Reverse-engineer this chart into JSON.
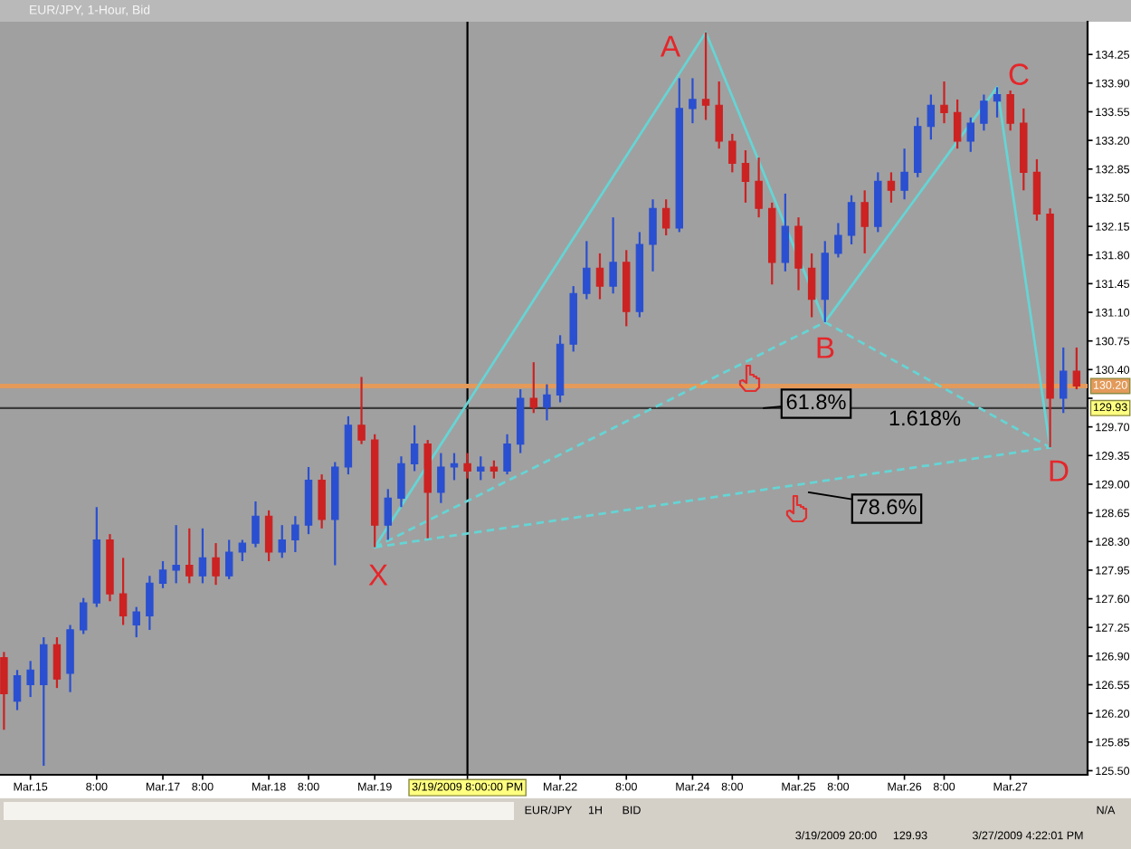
{
  "chart_data": {
    "type": "candlestick",
    "title": "EUR/JPY, 1-Hour, Bid",
    "categories": [
      null,
      null,
      "Mar.15",
      null,
      null,
      null,
      null,
      "8:00",
      null,
      null,
      null,
      null,
      "Mar.17",
      null,
      null,
      "8:00",
      null,
      null,
      null,
      null,
      "Mar.18",
      null,
      null,
      "8:00",
      null,
      null,
      null,
      null,
      "Mar.19",
      null,
      null,
      null,
      null,
      null,
      null,
      "3/19/2009 8:00:00 PM",
      null,
      null,
      null,
      null,
      null,
      null,
      "Mar.22",
      null,
      null,
      null,
      null,
      "8:00",
      null,
      null,
      null,
      null,
      "Mar.24",
      null,
      null,
      "8:00",
      null,
      null,
      null,
      null,
      "Mar.25",
      null,
      null,
      "8:00",
      null,
      null,
      null,
      null,
      "Mar.26",
      null,
      null,
      "8:00",
      null,
      null,
      null,
      null,
      "Mar.27",
      null,
      null,
      null,
      null,
      null
    ],
    "ohlc": [
      [
        126.88,
        126.95,
        126.0,
        126.44
      ],
      [
        126.35,
        126.73,
        126.24,
        126.66
      ],
      [
        126.55,
        126.84,
        126.4,
        126.73
      ],
      [
        126.55,
        127.13,
        125.56,
        127.04
      ],
      [
        127.04,
        127.13,
        126.51,
        126.62
      ],
      [
        126.69,
        127.28,
        126.46,
        127.22
      ],
      [
        127.22,
        127.61,
        127.17,
        127.55
      ],
      [
        127.55,
        128.72,
        127.5,
        128.32
      ],
      [
        128.32,
        128.39,
        127.57,
        127.66
      ],
      [
        127.66,
        128.1,
        127.28,
        127.39
      ],
      [
        127.28,
        127.5,
        127.13,
        127.44
      ],
      [
        127.39,
        127.88,
        127.22,
        127.79
      ],
      [
        127.79,
        128.06,
        127.73,
        127.95
      ],
      [
        127.95,
        128.5,
        127.79,
        128.01
      ],
      [
        128.01,
        128.46,
        127.79,
        127.88
      ],
      [
        127.88,
        128.46,
        127.79,
        128.1
      ],
      [
        128.1,
        128.28,
        127.77,
        127.88
      ],
      [
        127.88,
        128.32,
        127.84,
        128.17
      ],
      [
        128.17,
        128.32,
        128.06,
        128.28
      ],
      [
        128.28,
        128.79,
        128.23,
        128.61
      ],
      [
        128.61,
        128.68,
        128.06,
        128.17
      ],
      [
        128.17,
        128.5,
        128.1,
        128.32
      ],
      [
        128.32,
        128.61,
        128.17,
        128.5
      ],
      [
        128.5,
        129.21,
        128.39,
        129.05
      ],
      [
        129.05,
        129.12,
        128.46,
        128.57
      ],
      [
        128.57,
        129.27,
        128.01,
        129.21
      ],
      [
        129.21,
        129.83,
        129.12,
        129.72
      ],
      [
        129.72,
        130.31,
        129.49,
        129.54
      ],
      [
        129.54,
        129.61,
        128.23,
        128.5
      ],
      [
        128.5,
        128.94,
        128.32,
        128.83
      ],
      [
        128.83,
        129.34,
        128.72,
        129.25
      ],
      [
        129.25,
        129.72,
        129.16,
        129.49
      ],
      [
        129.49,
        129.54,
        128.34,
        128.9
      ],
      [
        128.9,
        129.38,
        128.77,
        129.21
      ],
      [
        129.21,
        129.38,
        129.05,
        129.25
      ],
      [
        129.25,
        129.38,
        129.07,
        129.16
      ],
      [
        129.16,
        129.34,
        129.05,
        129.21
      ],
      [
        129.21,
        129.29,
        129.07,
        129.16
      ],
      [
        129.16,
        129.61,
        129.12,
        129.49
      ],
      [
        129.49,
        130.16,
        129.38,
        130.05
      ],
      [
        130.05,
        130.49,
        129.87,
        129.94
      ],
      [
        129.94,
        130.22,
        129.78,
        130.09
      ],
      [
        130.09,
        130.82,
        130.0,
        130.71
      ],
      [
        130.71,
        131.42,
        130.62,
        131.33
      ],
      [
        131.33,
        131.97,
        131.26,
        131.64
      ],
      [
        131.64,
        131.82,
        131.26,
        131.42
      ],
      [
        131.42,
        132.26,
        131.33,
        131.71
      ],
      [
        131.71,
        131.86,
        130.93,
        131.11
      ],
      [
        131.11,
        132.08,
        131.04,
        131.93
      ],
      [
        131.93,
        132.48,
        131.6,
        132.37
      ],
      [
        132.37,
        132.48,
        132.04,
        132.13
      ],
      [
        132.13,
        133.96,
        132.08,
        133.59
      ],
      [
        133.59,
        133.96,
        133.41,
        133.7
      ],
      [
        133.7,
        134.52,
        133.45,
        133.63
      ],
      [
        133.63,
        133.92,
        133.1,
        133.19
      ],
      [
        133.19,
        133.28,
        132.81,
        132.92
      ],
      [
        132.92,
        133.08,
        132.44,
        132.7
      ],
      [
        132.7,
        132.99,
        132.26,
        132.37
      ],
      [
        132.37,
        132.44,
        131.44,
        131.71
      ],
      [
        131.71,
        132.55,
        131.6,
        132.15
      ],
      [
        132.15,
        132.26,
        131.37,
        131.64
      ],
      [
        131.64,
        131.82,
        131.04,
        131.26
      ],
      [
        131.26,
        131.97,
        130.98,
        131.82
      ],
      [
        131.82,
        132.19,
        131.77,
        132.04
      ],
      [
        132.04,
        132.53,
        131.93,
        132.44
      ],
      [
        132.44,
        132.59,
        131.82,
        132.15
      ],
      [
        132.15,
        132.81,
        132.08,
        132.7
      ],
      [
        132.7,
        132.81,
        132.44,
        132.59
      ],
      [
        132.59,
        133.1,
        132.48,
        132.81
      ],
      [
        132.81,
        133.48,
        132.75,
        133.37
      ],
      [
        133.37,
        133.76,
        133.21,
        133.63
      ],
      [
        133.63,
        133.92,
        133.41,
        133.54
      ],
      [
        133.54,
        133.7,
        133.1,
        133.19
      ],
      [
        133.19,
        133.48,
        133.06,
        133.41
      ],
      [
        133.41,
        133.76,
        133.32,
        133.68
      ],
      [
        133.68,
        133.85,
        133.48,
        133.76
      ],
      [
        133.76,
        133.81,
        133.32,
        133.41
      ],
      [
        133.41,
        133.59,
        132.59,
        132.81
      ],
      [
        132.81,
        132.97,
        132.22,
        132.3
      ],
      [
        132.3,
        132.37,
        129.45,
        130.05
      ],
      [
        130.05,
        130.67,
        129.87,
        130.38
      ],
      [
        130.38,
        130.67,
        130.16,
        130.2
      ]
    ],
    "colors": [
      "#cc2222",
      "#2a4fd0",
      "#2a4fd0",
      "#2a4fd0",
      "#cc2222",
      "#2a4fd0",
      "#2a4fd0",
      "#2a4fd0",
      "#cc2222",
      "#cc2222",
      "#2a4fd0",
      "#2a4fd0",
      "#2a4fd0",
      "#2a4fd0",
      "#cc2222",
      "#2a4fd0",
      "#cc2222",
      "#2a4fd0",
      "#2a4fd0",
      "#2a4fd0",
      "#cc2222",
      "#2a4fd0",
      "#2a4fd0",
      "#2a4fd0",
      "#cc2222",
      "#2a4fd0",
      "#2a4fd0",
      "#cc2222",
      "#cc2222",
      "#2a4fd0",
      "#2a4fd0",
      "#2a4fd0",
      "#cc2222",
      "#2a4fd0",
      "#2a4fd0",
      "#cc2222",
      "#2a4fd0",
      "#cc2222",
      "#2a4fd0",
      "#2a4fd0",
      "#cc2222",
      "#2a4fd0",
      "#2a4fd0",
      "#2a4fd0",
      "#2a4fd0",
      "#cc2222",
      "#2a4fd0",
      "#cc2222",
      "#2a4fd0",
      "#2a4fd0",
      "#cc2222",
      "#2a4fd0",
      "#2a4fd0",
      "#cc2222",
      "#cc2222",
      "#cc2222",
      "#cc2222",
      "#cc2222",
      "#cc2222",
      "#2a4fd0",
      "#cc2222",
      "#cc2222",
      "#2a4fd0",
      "#2a4fd0",
      "#2a4fd0",
      "#cc2222",
      "#2a4fd0",
      "#cc2222",
      "#2a4fd0",
      "#2a4fd0",
      "#2a4fd0",
      "#cc2222",
      "#cc2222",
      "#2a4fd0",
      "#2a4fd0",
      "#2a4fd0",
      "#cc2222",
      "#cc2222",
      "#cc2222",
      "#cc2222",
      "#2a4fd0",
      "#cc2222"
    ],
    "series": [
      {
        "type": "line",
        "color": "#66d4d4",
        "line_style": "solid",
        "values": [
          null,
          null,
          null,
          null,
          null,
          null,
          null,
          null,
          null,
          null,
          null,
          null,
          null,
          null,
          null,
          null,
          null,
          null,
          null,
          null,
          null,
          null,
          null,
          null,
          null,
          null,
          null,
          null,
          128.23,
          null,
          null,
          null,
          null,
          null,
          null,
          null,
          null,
          null,
          null,
          null,
          null,
          null,
          null,
          null,
          null,
          null,
          null,
          null,
          null,
          null,
          null,
          null,
          null,
          134.52,
          null,
          null,
          null,
          null,
          null,
          null,
          null,
          null,
          130.98,
          null,
          null,
          null,
          null,
          null,
          null,
          null,
          null,
          null,
          null,
          null,
          null,
          133.85,
          null,
          null,
          null,
          129.45,
          null,
          null
        ]
      },
      {
        "type": "line",
        "color": "#66d4d4",
        "line_style": "dashed",
        "values": [
          null,
          null,
          null,
          null,
          null,
          null,
          null,
          null,
          null,
          null,
          null,
          null,
          null,
          null,
          null,
          null,
          null,
          null,
          null,
          null,
          null,
          null,
          null,
          null,
          null,
          null,
          null,
          null,
          128.23,
          null,
          null,
          null,
          null,
          null,
          null,
          null,
          null,
          null,
          null,
          null,
          null,
          null,
          null,
          null,
          null,
          null,
          null,
          null,
          null,
          null,
          null,
          null,
          null,
          null,
          null,
          null,
          null,
          null,
          null,
          null,
          null,
          null,
          130.98,
          null,
          null,
          null,
          null,
          null,
          null,
          null,
          null,
          null,
          null,
          null,
          null,
          null,
          null,
          null,
          null,
          null,
          null,
          null
        ]
      },
      {
        "type": "line",
        "color": "#66d4d4",
        "line_style": "dashed",
        "values": [
          null,
          null,
          null,
          null,
          null,
          null,
          null,
          null,
          null,
          null,
          null,
          null,
          null,
          null,
          null,
          null,
          null,
          null,
          null,
          null,
          null,
          null,
          null,
          null,
          null,
          null,
          null,
          null,
          null,
          null,
          null,
          null,
          null,
          null,
          null,
          null,
          null,
          null,
          null,
          null,
          null,
          null,
          null,
          null,
          null,
          null,
          null,
          null,
          null,
          null,
          null,
          null,
          null,
          null,
          null,
          null,
          null,
          null,
          null,
          null,
          null,
          null,
          130.98,
          null,
          null,
          null,
          null,
          null,
          null,
          null,
          null,
          null,
          null,
          null,
          null,
          null,
          null,
          null,
          null,
          129.45,
          null,
          null
        ]
      },
      {
        "type": "line",
        "color": "#66d4d4",
        "line_style": "dashed",
        "values": [
          null,
          null,
          null,
          null,
          null,
          null,
          null,
          null,
          null,
          null,
          null,
          null,
          null,
          null,
          null,
          null,
          null,
          null,
          null,
          null,
          null,
          null,
          null,
          null,
          null,
          null,
          null,
          null,
          128.23,
          null,
          null,
          null,
          null,
          null,
          null,
          null,
          null,
          null,
          null,
          null,
          null,
          null,
          null,
          null,
          null,
          null,
          null,
          null,
          null,
          null,
          null,
          null,
          null,
          null,
          null,
          null,
          null,
          null,
          null,
          null,
          null,
          null,
          null,
          null,
          null,
          null,
          null,
          null,
          null,
          null,
          null,
          null,
          null,
          null,
          null,
          null,
          null,
          null,
          null,
          129.45,
          null,
          null
        ]
      }
    ],
    "ylim": [
      125.45,
      134.65
    ],
    "yticks": [
      {
        "value": 125.5,
        "label": "125.50"
      },
      {
        "value": 125.85,
        "label": "125.85"
      },
      {
        "value": 126.2,
        "label": "126.20"
      },
      {
        "value": 126.55,
        "label": "126.55"
      },
      {
        "value": 126.9,
        "label": "126.90"
      },
      {
        "value": 127.25,
        "label": "127.25"
      },
      {
        "value": 127.6,
        "label": "127.60"
      },
      {
        "value": 127.95,
        "label": "127.95"
      },
      {
        "value": 128.3,
        "label": "128.30"
      },
      {
        "value": 128.65,
        "label": "128.65"
      },
      {
        "value": 129.0,
        "label": "129.00"
      },
      {
        "value": 129.35,
        "label": "129.35"
      },
      {
        "value": 129.7,
        "label": "129.70"
      },
      {
        "value": 130.05,
        "label": null
      },
      {
        "value": 130.4,
        "label": "130.40"
      },
      {
        "value": 130.75,
        "label": "130.75"
      },
      {
        "value": 131.1,
        "label": "131.10"
      },
      {
        "value": 131.45,
        "label": "131.45"
      },
      {
        "value": 131.8,
        "label": "131.80"
      },
      {
        "value": 132.15,
        "label": "132.15"
      },
      {
        "value": 132.5,
        "label": "132.50"
      },
      {
        "value": 132.85,
        "label": "132.85"
      },
      {
        "value": 133.2,
        "label": "133.20"
      },
      {
        "value": 133.55,
        "label": "133.55"
      },
      {
        "value": 133.9,
        "label": "133.90"
      },
      {
        "value": 134.25,
        "label": "134.25"
      }
    ],
    "ref_lines": [
      {
        "axis": "x",
        "value": "3/19/2009 8:00:00 PM",
        "color": "#000000"
      },
      {
        "axis": "y",
        "value": 129.93,
        "label": "129.93",
        "color": "#3a3a3a"
      },
      {
        "axis": "y",
        "value": 130.2,
        "label": "130.20",
        "color": "#e39a5a"
      }
    ],
    "annotations": [
      "X",
      "A",
      "B",
      "C",
      "D",
      {
        "text": "61.8%",
        "y": 129.93
      },
      "1.618%",
      "78.6%",
      "EUR/JPY",
      "1H",
      "BID",
      "N/A",
      "3/19/2009 20:00",
      "129.93",
      "3/27/2009 4:22:01 PM"
    ]
  }
}
